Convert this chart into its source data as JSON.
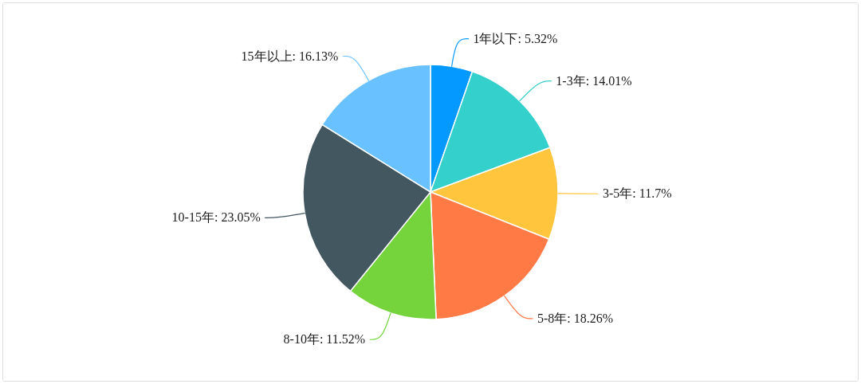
{
  "chart_data": {
    "type": "pie",
    "categories": [
      "1年以下",
      "1-3年",
      "3-5年",
      "5-8年",
      "8-10年",
      "10-15年",
      "15年以上"
    ],
    "values": [
      5.32,
      14.01,
      11.7,
      18.26,
      11.52,
      23.05,
      16.13
    ],
    "value_labels": [
      "5.32%",
      "14.01%",
      "11.7%",
      "18.26%",
      "11.52%",
      "23.05%",
      "16.13%"
    ],
    "colors": [
      "#0399fe",
      "#33d0cc",
      "#ffc53d",
      "#ff7a45",
      "#75d33c",
      "#435761",
      "#69c1ff"
    ]
  }
}
